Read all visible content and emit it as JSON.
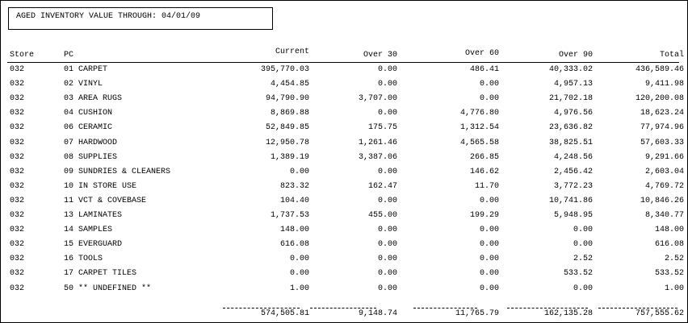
{
  "header": {
    "title": "AGED INVENTORY VALUE THROUGH: 04/01/09"
  },
  "table": {
    "columns": [
      "Store",
      "PC",
      "Current",
      "Over 30",
      "Over 60",
      "Over 90",
      "Total"
    ],
    "rows": [
      [
        "032",
        "01 CARPET",
        "395,770.03",
        "0.00",
        "486.41",
        "40,333.02",
        "436,589.46"
      ],
      [
        "032",
        "02 VINYL",
        "4,454.85",
        "0.00",
        "0.00",
        "4,957.13",
        "9,411.98"
      ],
      [
        "032",
        "03 AREA RUGS",
        "94,790.90",
        "3,707.00",
        "0.00",
        "21,702.18",
        "120,200.08"
      ],
      [
        "032",
        "04 CUSHION",
        "8,869.88",
        "0.00",
        "4,776.80",
        "4,976.56",
        "18,623.24"
      ],
      [
        "032",
        "06 CERAMIC",
        "52,849.85",
        "175.75",
        "1,312.54",
        "23,636.82",
        "77,974.96"
      ],
      [
        "032",
        "07 HARDWOOD",
        "12,950.78",
        "1,261.46",
        "4,565.58",
        "38,825.51",
        "57,603.33"
      ],
      [
        "032",
        "08 SUPPLIES",
        "1,389.19",
        "3,387.06",
        "266.85",
        "4,248.56",
        "9,291.66"
      ],
      [
        "032",
        "09 SUNDRIES & CLEANERS",
        "0.00",
        "0.00",
        "146.62",
        "2,456.42",
        "2,603.04"
      ],
      [
        "032",
        "10 IN STORE USE",
        "823.32",
        "162.47",
        "11.70",
        "3,772.23",
        "4,769.72"
      ],
      [
        "032",
        "11 VCT & COVEBASE",
        "104.40",
        "0.00",
        "0.00",
        "10,741.86",
        "10,846.26"
      ],
      [
        "032",
        "13 LAMINATES",
        "1,737.53",
        "455.00",
        "199.29",
        "5,948.95",
        "8,340.77"
      ],
      [
        "032",
        "14 SAMPLES",
        "148.00",
        "0.00",
        "0.00",
        "0.00",
        "148.00"
      ],
      [
        "032",
        "15 EVERGUARD",
        "616.08",
        "0.00",
        "0.00",
        "0.00",
        "616.08"
      ],
      [
        "032",
        "16 TOOLS",
        "0.00",
        "0.00",
        "0.00",
        "2.52",
        "2.52"
      ],
      [
        "032",
        "17 CARPET TILES",
        "0.00",
        "0.00",
        "0.00",
        "533.52",
        "533.52"
      ],
      [
        "032",
        "50 ** UNDEFINED **",
        "1.00",
        "0.00",
        "0.00",
        "0.00",
        "1.00"
      ]
    ],
    "totals": [
      "574,505.81",
      "9,148.74",
      "11,765.79",
      "162,135.28",
      "757,555.62"
    ]
  }
}
